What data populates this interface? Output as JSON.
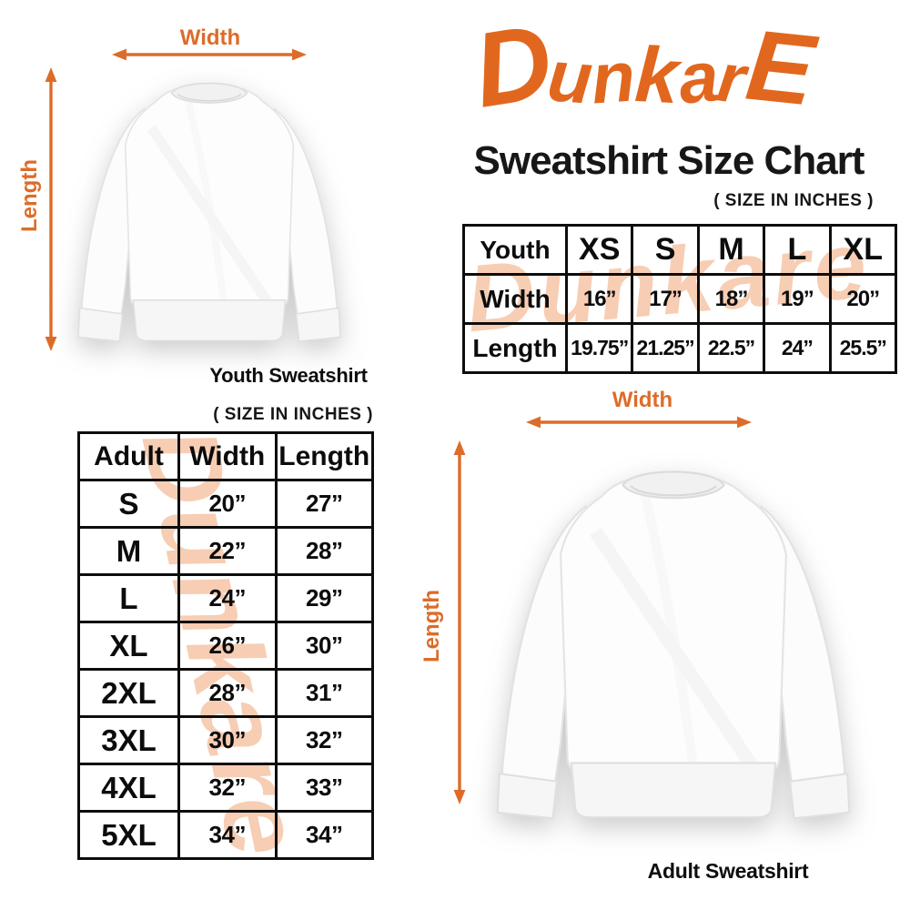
{
  "colors": {
    "accent_orange": "#e2671e",
    "arrow_orange": "#dd6c29",
    "watermark_peach": "#f7cdb3",
    "table_border": "#0d0d0d",
    "text_black": "#111111"
  },
  "brand": {
    "logo_text": "DunkarE"
  },
  "header": {
    "title": "Sweatshirt Size Chart",
    "units_note": "( SIZE IN INCHES )"
  },
  "watermark": {
    "text": "Dunkare"
  },
  "youth_diagram": {
    "width_label": "Width",
    "length_label": "Length",
    "caption": "Youth Sweatshirt"
  },
  "adult_diagram": {
    "width_label": "Width",
    "length_label": "Length",
    "caption": "Adult Sweatshirt"
  },
  "youth_table": {
    "columns": [
      "Youth",
      "XS",
      "S",
      "M",
      "L",
      "XL"
    ],
    "rows": [
      [
        "Width",
        "16”",
        "17”",
        "18”",
        "19”",
        "20”"
      ],
      [
        "Length",
        "19.75”",
        "21.25”",
        "22.5”",
        "24”",
        "25.5”"
      ]
    ]
  },
  "adult_table": {
    "units_note": "( SIZE IN INCHES )",
    "columns": [
      "Adult",
      "Width",
      "Length"
    ],
    "rows": [
      [
        "S",
        "20”",
        "27”"
      ],
      [
        "M",
        "22”",
        "28”"
      ],
      [
        "L",
        "24”",
        "29”"
      ],
      [
        "XL",
        "26”",
        "30”"
      ],
      [
        "2XL",
        "28”",
        "31”"
      ],
      [
        "3XL",
        "30”",
        "32”"
      ],
      [
        "4XL",
        "32”",
        "33”"
      ],
      [
        "5XL",
        "34”",
        "34”"
      ]
    ]
  },
  "chart_data": [
    {
      "type": "table",
      "title": "Youth Sweatshirt Size Chart (size in inches)",
      "columns": [
        "Youth",
        "XS",
        "S",
        "M",
        "L",
        "XL"
      ],
      "rows": [
        [
          "Width",
          "16",
          "17",
          "18",
          "19",
          "20"
        ],
        [
          "Length",
          "19.75",
          "21.25",
          "22.5",
          "24",
          "25.5"
        ]
      ]
    },
    {
      "type": "table",
      "title": "Adult Sweatshirt Size Chart (size in inches)",
      "columns": [
        "Adult",
        "Width",
        "Length"
      ],
      "rows": [
        [
          "S",
          "20",
          "27"
        ],
        [
          "M",
          "22",
          "28"
        ],
        [
          "L",
          "24",
          "29"
        ],
        [
          "XL",
          "26",
          "30"
        ],
        [
          "2XL",
          "28",
          "31"
        ],
        [
          "3XL",
          "30",
          "32"
        ],
        [
          "4XL",
          "32",
          "33"
        ],
        [
          "5XL",
          "34",
          "34"
        ]
      ]
    }
  ]
}
